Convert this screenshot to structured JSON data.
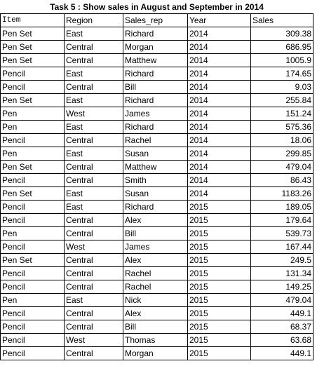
{
  "title": "Task 5 : Show sales in August and September in 2014",
  "columns": [
    "Item",
    "Region",
    "Sales_rep",
    "Year",
    "Sales"
  ],
  "rows": [
    [
      "Pen Set",
      "East",
      "Richard",
      "2014",
      "309.38"
    ],
    [
      "Pen Set",
      "Central",
      "Morgan",
      "2014",
      "686.95"
    ],
    [
      "Pen Set",
      "Central",
      "Matthew",
      "2014",
      "1005.9"
    ],
    [
      "Pencil",
      "East",
      "Richard",
      "2014",
      "174.65"
    ],
    [
      "Pencil",
      "Central",
      "Bill",
      "2014",
      "9.03"
    ],
    [
      "Pen Set",
      "East",
      "Richard",
      "2014",
      "255.84"
    ],
    [
      "Pen",
      "West",
      "James",
      "2014",
      "151.24"
    ],
    [
      "Pen",
      "East",
      "Richard",
      "2014",
      "575.36"
    ],
    [
      "Pencil",
      "Central",
      "Rachel",
      "2014",
      "18.06"
    ],
    [
      "Pen",
      "East",
      "Susan",
      "2014",
      "299.85"
    ],
    [
      "Pen Set",
      "Central",
      "Matthew",
      "2014",
      "479.04"
    ],
    [
      "Pencil",
      "Central",
      "Smith",
      "2014",
      "86.43"
    ],
    [
      "Pen Set",
      "East",
      "Susan",
      "2014",
      "1183.26"
    ],
    [
      "Pencil",
      "East",
      "Richard",
      "2015",
      "189.05"
    ],
    [
      "Pencil",
      "Central",
      "Alex",
      "2015",
      "179.64"
    ],
    [
      "Pen",
      "Central",
      "Bill",
      "2015",
      "539.73"
    ],
    [
      "Pencil",
      "West",
      "James",
      "2015",
      "167.44"
    ],
    [
      "Pen Set",
      "Central",
      "Alex",
      "2015",
      "249.5"
    ],
    [
      "Pencil",
      "Central",
      "Rachel",
      "2015",
      "131.34"
    ],
    [
      "Pencil",
      "Central",
      "Rachel",
      "2015",
      "149.25"
    ],
    [
      "Pen",
      "East",
      "Nick",
      "2015",
      "479.04"
    ],
    [
      "Pencil",
      "Central",
      "Alex",
      "2015",
      "449.1"
    ],
    [
      "Pencil",
      "Central",
      "Bill",
      "2015",
      "68.37"
    ],
    [
      "Pencil",
      "West",
      "Thomas",
      "2015",
      "63.68"
    ],
    [
      "Pencil",
      "Central",
      "Morgan",
      "2015",
      "449.1"
    ]
  ]
}
